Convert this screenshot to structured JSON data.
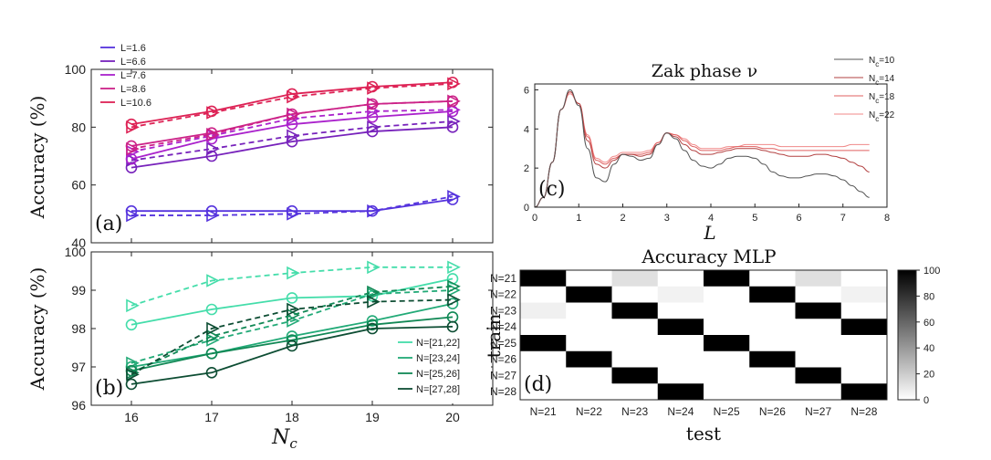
{
  "colors": {
    "L=1.6": "#5533dd",
    "L=6.6": "#7722bb",
    "L=7.6": "#aa22cc",
    "L=8.6": "#cc2288",
    "L=10.6": "#dd2255",
    "N=[21,22]": "#44ddaa",
    "N=[23,24]": "#22aa77",
    "N=[25,26]": "#118855",
    "N=[27,28]": "#0d4d33",
    "Nc=10": "#555555",
    "Nc=14": "#b24040",
    "Nc=18": "#e06060",
    "Nc=22": "#f08a8a"
  },
  "chart_data": [
    {
      "type": "line",
      "panel": "(a)",
      "ylabel": "Accuracy (%)",
      "ylim": [
        40,
        100
      ],
      "yticks": [
        "40",
        "60",
        "80",
        "100"
      ],
      "x": [
        16,
        17,
        18,
        19,
        20
      ],
      "xlim": [
        15.5,
        20.5
      ],
      "xlabel": "",
      "series": [
        {
          "name": "L=1.6",
          "solid": [
            51,
            51,
            51,
            51,
            55
          ],
          "dashed": [
            49.5,
            49.5,
            50,
            51,
            56
          ]
        },
        {
          "name": "L=6.6",
          "solid": [
            66,
            70,
            75,
            78.5,
            80
          ],
          "dashed": [
            68.5,
            72.5,
            77,
            80,
            82
          ]
        },
        {
          "name": "L=7.6",
          "solid": [
            69,
            76,
            81,
            83.5,
            85.5
          ],
          "dashed": [
            71.5,
            77,
            83,
            85.5,
            86
          ]
        },
        {
          "name": "L=8.6",
          "solid": [
            73.5,
            78,
            84.5,
            88,
            89
          ],
          "dashed": [
            72.5,
            77.5,
            84.5,
            88,
            89
          ]
        },
        {
          "name": "L=10.6",
          "solid": [
            81,
            85.5,
            91.5,
            94,
            95.5
          ],
          "dashed": [
            80,
            85,
            90.5,
            93.5,
            95
          ]
        }
      ]
    },
    {
      "type": "line",
      "panel": "(b)",
      "ylabel": "Accuracy (%)",
      "xlabel": "N_c",
      "ylim": [
        96,
        100
      ],
      "yticks": [
        "96",
        "97",
        "98",
        "99",
        "100"
      ],
      "xticks": [
        "16",
        "17",
        "18",
        "19",
        "20"
      ],
      "x": [
        16,
        17,
        18,
        19,
        20
      ],
      "xlim": [
        15.5,
        20.5
      ],
      "series": [
        {
          "name": "N=[21,22]",
          "solid": [
            98.1,
            98.5,
            98.8,
            98.85,
            99.3
          ],
          "dashed": [
            98.6,
            99.25,
            99.45,
            99.6,
            99.6
          ]
        },
        {
          "name": "N=[23,24]",
          "solid": [
            97.0,
            97.35,
            97.8,
            98.2,
            98.65
          ],
          "dashed": [
            97.1,
            97.7,
            98.2,
            98.9,
            99.0
          ]
        },
        {
          "name": "N=[25,26]",
          "solid": [
            96.9,
            97.35,
            97.7,
            98.1,
            98.3
          ],
          "dashed": [
            96.85,
            97.8,
            98.35,
            98.95,
            99.1
          ]
        },
        {
          "name": "N=[27,28]",
          "solid": [
            96.55,
            96.85,
            97.55,
            98.0,
            98.05
          ],
          "dashed": [
            96.8,
            98.0,
            98.5,
            98.7,
            98.75
          ]
        }
      ]
    },
    {
      "type": "line",
      "panel": "(c)",
      "title": "Zak phase ν",
      "xlabel": "L",
      "ylabel": "",
      "xlim": [
        0,
        8
      ],
      "ylim": [
        0,
        6.3
      ],
      "xticks": [
        "0",
        "1",
        "2",
        "3",
        "4",
        "5",
        "6",
        "7",
        "8"
      ],
      "yticks": [
        "0",
        "2",
        "4",
        "6"
      ],
      "x": [
        0,
        0.2,
        0.4,
        0.6,
        0.8,
        1.0,
        1.2,
        1.4,
        1.6,
        1.8,
        2.0,
        2.2,
        2.4,
        2.6,
        2.8,
        3.0,
        3.2,
        3.4,
        3.6,
        3.8,
        4.0,
        4.2,
        4.4,
        4.6,
        4.8,
        5.0,
        5.2,
        5.4,
        5.6,
        5.8,
        6.0,
        6.2,
        6.4,
        6.6,
        6.8,
        7.0,
        7.2,
        7.4,
        7.6
      ],
      "series": [
        {
          "name": "N_c=10",
          "values": [
            0,
            0.5,
            2.3,
            5.0,
            6.0,
            5.2,
            3.0,
            1.5,
            1.3,
            2.2,
            2.7,
            2.6,
            2.4,
            2.5,
            3.2,
            3.8,
            3.5,
            2.9,
            2.4,
            2.1,
            2.0,
            2.2,
            2.5,
            2.6,
            2.6,
            2.5,
            2.2,
            1.8,
            1.6,
            1.5,
            1.5,
            1.6,
            1.7,
            1.7,
            1.6,
            1.4,
            1.1,
            0.8,
            0.5
          ]
        },
        {
          "name": "N_c=14",
          "values": [
            0,
            0.5,
            2.3,
            5.0,
            5.9,
            5.3,
            3.4,
            2.2,
            2.0,
            2.4,
            2.7,
            2.7,
            2.6,
            2.7,
            3.2,
            3.8,
            3.6,
            3.2,
            2.9,
            2.7,
            2.7,
            2.8,
            2.9,
            3.0,
            3.0,
            3.0,
            2.9,
            2.8,
            2.7,
            2.6,
            2.6,
            2.6,
            2.7,
            2.7,
            2.6,
            2.5,
            2.3,
            2.1,
            1.8
          ]
        },
        {
          "name": "N_c=18",
          "values": [
            0,
            0.5,
            2.3,
            5.0,
            5.9,
            5.3,
            3.6,
            2.4,
            2.2,
            2.5,
            2.7,
            2.7,
            2.7,
            2.8,
            3.3,
            3.8,
            3.7,
            3.4,
            3.1,
            2.9,
            2.9,
            2.9,
            3.0,
            3.1,
            3.1,
            3.1,
            3.0,
            3.0,
            2.9,
            2.9,
            2.9,
            2.9,
            2.9,
            2.9,
            2.9,
            2.9,
            2.9,
            2.9,
            2.9
          ]
        },
        {
          "name": "N_c=22",
          "values": [
            0,
            0.5,
            2.3,
            5.0,
            5.8,
            5.3,
            3.7,
            2.5,
            2.3,
            2.6,
            2.8,
            2.8,
            2.8,
            2.9,
            3.3,
            3.8,
            3.7,
            3.5,
            3.2,
            3.0,
            3.0,
            3.0,
            3.1,
            3.1,
            3.2,
            3.2,
            3.2,
            3.2,
            3.1,
            3.1,
            3.1,
            3.1,
            3.1,
            3.1,
            3.1,
            3.1,
            3.2,
            3.2,
            3.2
          ]
        }
      ]
    },
    {
      "type": "heatmap",
      "panel": "(d)",
      "title": "Accuracy MLP",
      "xlabel": "test",
      "ylabel": "train",
      "rows": [
        "N=21",
        "N=22",
        "N=23",
        "N=24",
        "N=25",
        "N=26",
        "N=27",
        "N=28"
      ],
      "cols": [
        "N=21",
        "N=22",
        "N=23",
        "N=24",
        "N=25",
        "N=26",
        "N=27",
        "N=28"
      ],
      "colorbar": {
        "min": 0,
        "max": 100,
        "ticks": [
          "0",
          "20",
          "40",
          "60",
          "80",
          "100"
        ]
      },
      "values": [
        [
          100,
          0,
          12,
          0,
          100,
          0,
          12,
          0
        ],
        [
          0,
          100,
          0,
          5,
          0,
          100,
          0,
          5
        ],
        [
          6,
          0,
          100,
          0,
          0,
          0,
          100,
          0
        ],
        [
          0,
          0,
          0,
          100,
          0,
          0,
          0,
          100
        ],
        [
          100,
          0,
          0,
          0,
          100,
          0,
          0,
          0
        ],
        [
          0,
          100,
          0,
          0,
          0,
          100,
          0,
          0
        ],
        [
          0,
          0,
          100,
          0,
          0,
          0,
          100,
          0
        ],
        [
          0,
          0,
          0,
          100,
          0,
          0,
          0,
          100
        ]
      ]
    }
  ]
}
